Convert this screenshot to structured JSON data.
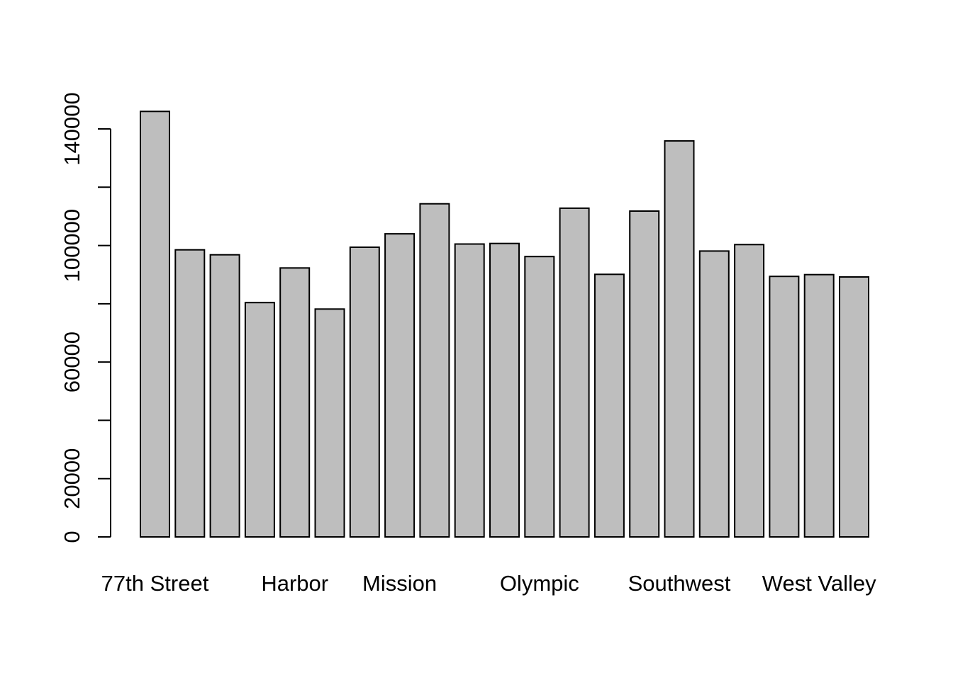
{
  "chart_data": {
    "type": "bar",
    "title": "",
    "xlabel": "",
    "ylabel": "",
    "categories": [
      "77th Street",
      "",
      "",
      "",
      "Harbor",
      "",
      "",
      "Mission",
      "",
      "",
      "",
      "Olympic",
      "",
      "",
      "",
      "Southwest",
      "",
      "",
      "",
      "West Valley",
      ""
    ],
    "values": [
      146000,
      98500,
      96800,
      80400,
      92300,
      78200,
      99400,
      104000,
      114300,
      100500,
      100700,
      96200,
      112800,
      90100,
      111800,
      135900,
      98100,
      100300,
      89400,
      90000,
      89200
    ],
    "yticks": [
      0,
      20000,
      40000,
      60000,
      80000,
      100000,
      120000,
      140000
    ],
    "ytick_labels": [
      "0",
      "20000",
      "",
      "60000",
      "",
      "100000",
      "",
      "140000"
    ],
    "ylim": [
      0,
      146000
    ],
    "bar_color": "#bebebe",
    "grid": false,
    "legend": "none"
  }
}
